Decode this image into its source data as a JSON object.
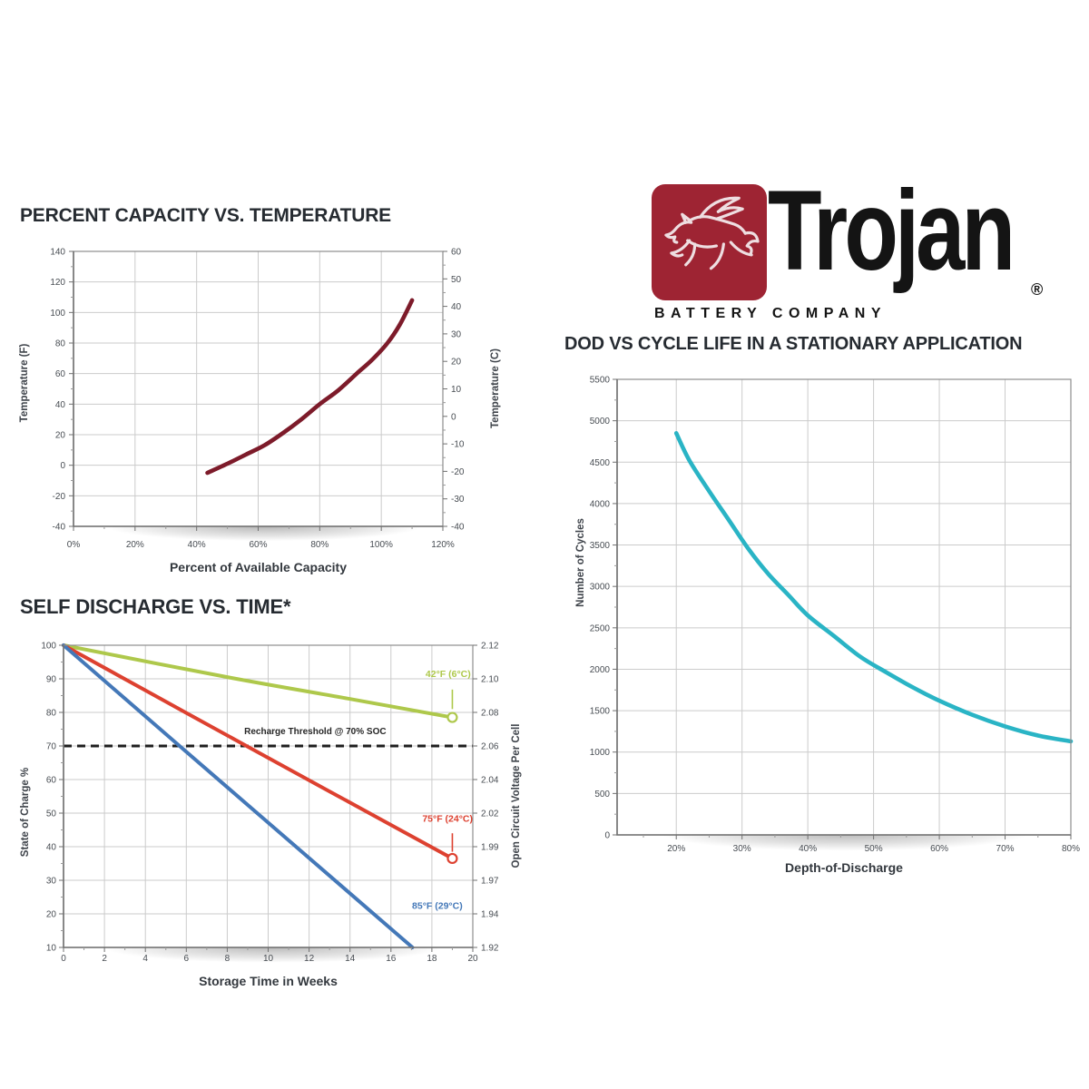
{
  "logo": {
    "brand": "Trojan",
    "registered": "®",
    "subtitle": "BATTERY COMPANY",
    "badge_color": "#9e2433",
    "pegasus_icon": "pegasus-horse-icon"
  },
  "chart_data": [
    {
      "id": "capacity_vs_temperature",
      "type": "line",
      "title": "PERCENT CAPACITY VS. TEMPERATURE",
      "xlabel": "Percent of Available Capacity",
      "ylabel_left": "Temperature (F)",
      "xlim": [
        0,
        120
      ],
      "ylim_left": [
        -40,
        140
      ],
      "x_ticks": [
        "0%",
        "20%",
        "40%",
        "60%",
        "80%",
        "100%",
        "120%"
      ],
      "x_tick_values": [
        0,
        20,
        40,
        60,
        80,
        100,
        120
      ],
      "y_ticks_left": [
        140,
        120,
        100,
        80,
        60,
        40,
        20,
        0,
        -20,
        -40
      ],
      "right_axis": {
        "title": "Temperature (C)",
        "lim": [
          -40,
          60
        ],
        "ticks": [
          60,
          50,
          40,
          30,
          20,
          10,
          0,
          -10,
          -20,
          -30,
          -40
        ]
      },
      "grid": true,
      "series": [
        {
          "name": "capacity-temperature-curve",
          "color": "#7d1b2a",
          "points": [
            [
              43.5,
              -5
            ],
            [
              50,
              1
            ],
            [
              56,
              7
            ],
            [
              62,
              13
            ],
            [
              68,
              21
            ],
            [
              74,
              30
            ],
            [
              80,
              40
            ],
            [
              86,
              49
            ],
            [
              92,
              60
            ],
            [
              97,
              69
            ],
            [
              102,
              80
            ],
            [
              106,
              92
            ],
            [
              110,
              108
            ]
          ]
        }
      ]
    },
    {
      "id": "self_discharge_vs_time",
      "type": "line",
      "title": "SELF DISCHARGE VS. TIME*",
      "xlabel": "Storage Time in Weeks",
      "ylabel_left": "State of Charge %",
      "xlim": [
        0,
        20
      ],
      "ylim_left": [
        10,
        100
      ],
      "x_ticks": [
        "0",
        "2",
        "4",
        "6",
        "8",
        "10",
        "12",
        "14",
        "16",
        "18",
        "20"
      ],
      "x_tick_values": [
        0,
        2,
        4,
        6,
        8,
        10,
        12,
        14,
        16,
        18,
        20
      ],
      "y_ticks_left": [
        100,
        90,
        80,
        70,
        60,
        50,
        40,
        30,
        20,
        10
      ],
      "right_axis": {
        "title": "Open Circuit Voltage Per Cell",
        "labels_at_left_ticks": [
          "2.12",
          "2.10",
          "2.08",
          "2.06",
          "2.04",
          "2.02",
          "1.99",
          "1.97",
          "1.94",
          "1.92"
        ]
      },
      "grid": true,
      "threshold": {
        "label": "Recharge Threshold @ 70% SOC",
        "value": 70,
        "label_pos": [
          12.3,
          73.5
        ]
      },
      "series": [
        {
          "name": "discharge-42F",
          "label": "42°F (6°C)",
          "color": "#aec84b",
          "points": [
            [
              0,
              100
            ],
            [
              8,
              90.5
            ],
            [
              14,
              84
            ],
            [
              19,
              78.5
            ]
          ],
          "end_marker": true,
          "label_pos": [
            19.9,
            90.5
          ],
          "label_anchor": "end",
          "leader": [
            [
              19,
              86.8
            ],
            [
              19,
              81
            ]
          ]
        },
        {
          "name": "discharge-75F",
          "label": "75°F (24°C)",
          "color": "#dd4130",
          "points": [
            [
              0,
              100
            ],
            [
              9,
              69.8
            ],
            [
              19,
              36.5
            ]
          ],
          "end_marker": true,
          "label_pos": [
            20,
            47.5
          ],
          "label_anchor": "end",
          "leader": [
            [
              19,
              44
            ],
            [
              19,
              38.5
            ]
          ]
        },
        {
          "name": "discharge-85F",
          "label": "85°F (29°C)",
          "color": "#4478b8",
          "points": [
            [
              0,
              100
            ],
            [
              5.67,
              70
            ],
            [
              17.05,
              10
            ]
          ],
          "end_marker": false,
          "label_pos": [
            19.5,
            21.5
          ],
          "label_anchor": "end"
        }
      ]
    },
    {
      "id": "dod_vs_cycle_life",
      "type": "line",
      "title": "DOD VS CYCLE LIFE IN A STATIONARY APPLICATION",
      "xlabel": "Depth-of-Discharge",
      "ylabel_left": "Number of Cycles",
      "xlim": [
        11,
        80
      ],
      "ylim_left": [
        0,
        5500
      ],
      "x_ticks": [
        "20%",
        "30%",
        "40%",
        "50%",
        "60%",
        "70%",
        "80%"
      ],
      "x_tick_values": [
        20,
        30,
        40,
        50,
        60,
        70,
        80
      ],
      "y_ticks_left": [
        5500,
        5000,
        4500,
        4000,
        3500,
        3000,
        2500,
        2000,
        1500,
        1000,
        500,
        0
      ],
      "grid": true,
      "series": [
        {
          "name": "cycle-life-curve",
          "color": "#2ab4c5",
          "points": [
            [
              20,
              4850
            ],
            [
              22,
              4520
            ],
            [
              25,
              4150
            ],
            [
              28,
              3800
            ],
            [
              31,
              3450
            ],
            [
              34,
              3150
            ],
            [
              37,
              2900
            ],
            [
              40,
              2650
            ],
            [
              44,
              2400
            ],
            [
              48,
              2150
            ],
            [
              52,
              1960
            ],
            [
              56,
              1780
            ],
            [
              60,
              1620
            ],
            [
              65,
              1450
            ],
            [
              70,
              1310
            ],
            [
              75,
              1200
            ],
            [
              80,
              1130
            ]
          ]
        }
      ]
    }
  ]
}
